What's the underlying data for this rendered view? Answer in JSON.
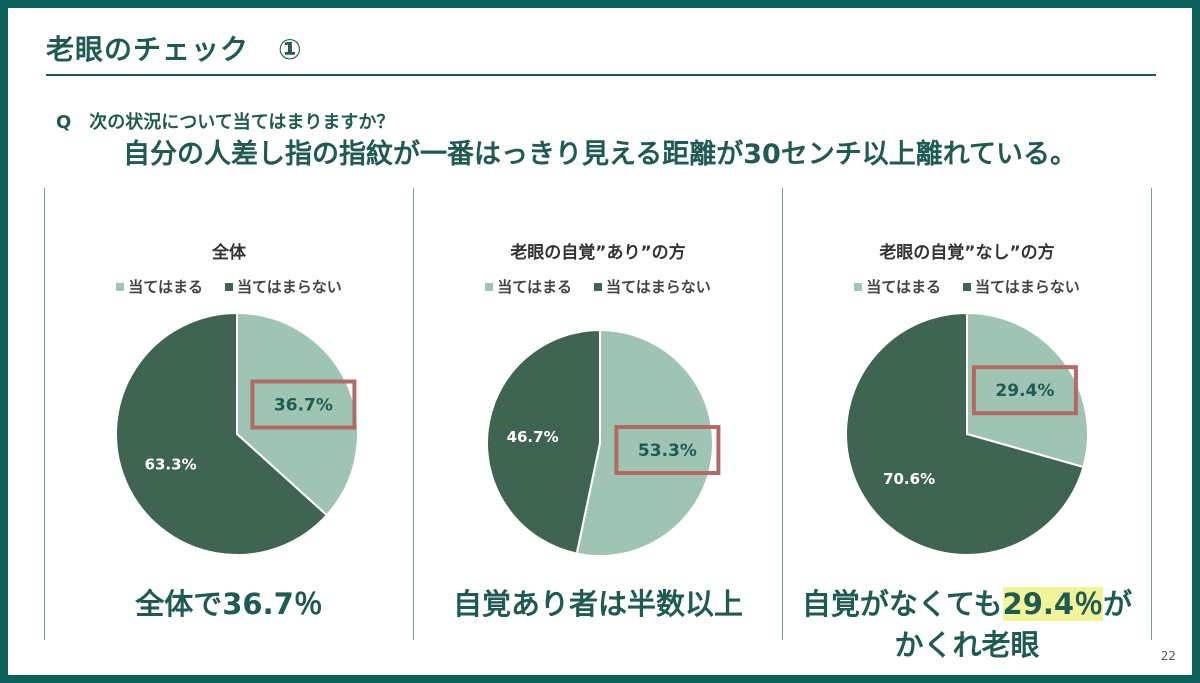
{
  "slide": {
    "title": "老眼のチェック　①",
    "question_prefix": "Q　次の状況について当てはまりますか？",
    "question_main": "自分の人差し指の指紋が一番はっきり見える距離が30センチ以上離れている。",
    "page_number": "22"
  },
  "legend_labels": {
    "yes": "当てはまる",
    "no": "当てはまらない"
  },
  "colors": {
    "yes": "#9fc4b4",
    "no": "#3f6452",
    "highlight_box": "#b36a65",
    "accent": "#1f5b52",
    "marker": "#f3f49a"
  },
  "conclusions": {
    "panel1": {
      "text": "全体で36.7％"
    },
    "panel2": {
      "text": "自覚あり者は半数以上"
    },
    "panel3": {
      "pre": "自覚がなくても",
      "highlight": "29.4％",
      "post": "が",
      "line2": "かくれ老眼"
    }
  },
  "chart_data": [
    {
      "type": "pie",
      "title": "全体",
      "labels": [
        "当てはまる",
        "当てはまらない"
      ],
      "values": [
        36.7,
        63.3
      ],
      "value_labels": [
        "36.7%",
        "63.3%"
      ],
      "highlighted": "当てはまる",
      "legend": "top"
    },
    {
      "type": "pie",
      "title": "老眼の自覚”あり”の方",
      "labels": [
        "当てはまる",
        "当てはまらない"
      ],
      "values": [
        53.3,
        46.7
      ],
      "value_labels": [
        "53.3%",
        "46.7%"
      ],
      "highlighted": "当てはまる",
      "legend": "top"
    },
    {
      "type": "pie",
      "title": "老眼の自覚”なし”の方",
      "labels": [
        "当てはまる",
        "当てはまらない"
      ],
      "values": [
        29.4,
        70.6
      ],
      "value_labels": [
        "29.4%",
        "70.6%"
      ],
      "highlighted": "当てはまる",
      "legend": "top"
    }
  ]
}
